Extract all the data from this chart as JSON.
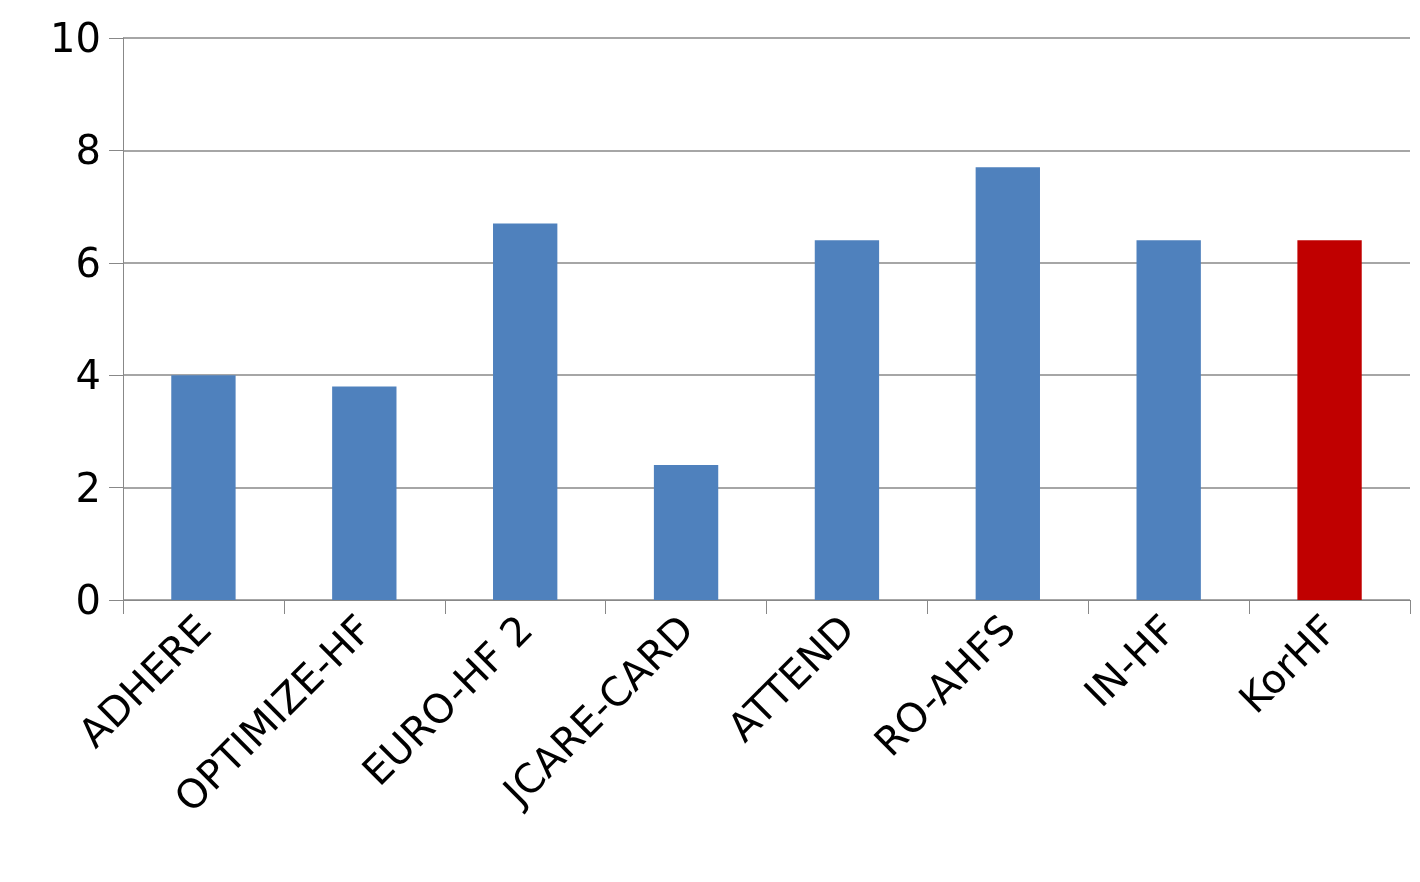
{
  "chart_data": {
    "type": "bar",
    "categories": [
      "ADHERE",
      "OPTIMIZE-HF",
      "EURO-HF 2",
      "JCARE-CARD",
      "ATTEND",
      "RO-AHFS",
      "IN-HF",
      "KorHF"
    ],
    "values": [
      4.0,
      3.8,
      6.7,
      2.4,
      6.4,
      7.7,
      6.4,
      6.4
    ],
    "colors": [
      "#4f81bd",
      "#4f81bd",
      "#4f81bd",
      "#4f81bd",
      "#4f81bd",
      "#4f81bd",
      "#4f81bd",
      "#c00000"
    ],
    "ylim": [
      0,
      10
    ],
    "yticks": [
      0,
      2,
      4,
      6,
      8,
      10
    ],
    "grid": "y"
  }
}
